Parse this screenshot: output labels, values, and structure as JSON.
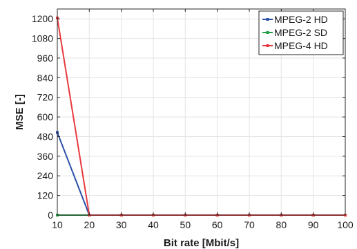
{
  "chart_data": {
    "type": "line",
    "title": "",
    "xlabel": "Bit rate [Mbit/s]",
    "ylabel": "MSE [-]",
    "x": [
      10,
      20,
      30,
      40,
      50,
      60,
      70,
      80,
      90,
      100
    ],
    "xlim": [
      10,
      100
    ],
    "ylim": [
      0,
      1260
    ],
    "xticks": [
      10,
      20,
      30,
      40,
      50,
      60,
      70,
      80,
      90,
      100
    ],
    "yticks": [
      0,
      120,
      240,
      360,
      480,
      600,
      720,
      840,
      960,
      1080,
      1200
    ],
    "grid": true,
    "legend_position": "top-right",
    "series": [
      {
        "name": "MPEG-2 HD",
        "color": "#2a4fa8",
        "values": [
          505,
          0,
          0,
          0,
          0,
          0,
          0,
          0,
          0,
          0
        ]
      },
      {
        "name": "MPEG-2 SD",
        "color": "#22a045",
        "values": [
          0,
          0,
          0,
          0,
          0,
          0,
          0,
          0,
          0,
          0
        ]
      },
      {
        "name": "MPEG-4 HD",
        "color": "#e8383d",
        "values": [
          1205,
          0,
          0,
          0,
          0,
          0,
          0,
          0,
          0,
          0
        ]
      }
    ]
  }
}
